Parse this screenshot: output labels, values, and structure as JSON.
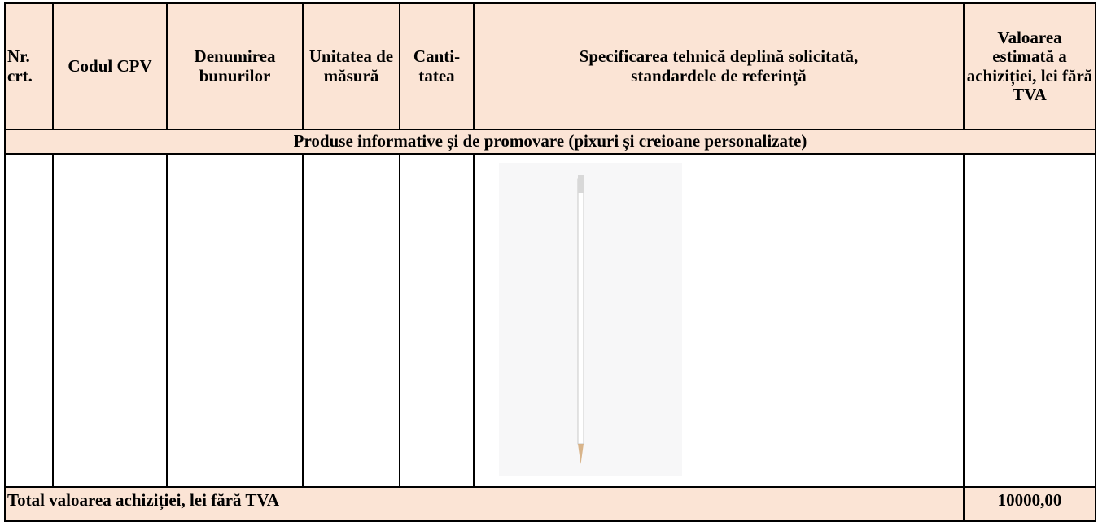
{
  "table": {
    "columns": [
      "Nr. crt.",
      "Codul CPV",
      "Denumirea bunurilor",
      "Unitatea de măsură",
      "Canti-tatea",
      "Specificarea tehnică deplină solicitată, standardele de referinţă",
      "Valoarea estimată a achiziției, lei fără TVA"
    ],
    "section_title": "Produse informative și de promovare (pixuri și creioane personalizate)",
    "total": {
      "label": "Total valoarea achiziției, lei fără TVA",
      "value": "10000,00"
    }
  }
}
